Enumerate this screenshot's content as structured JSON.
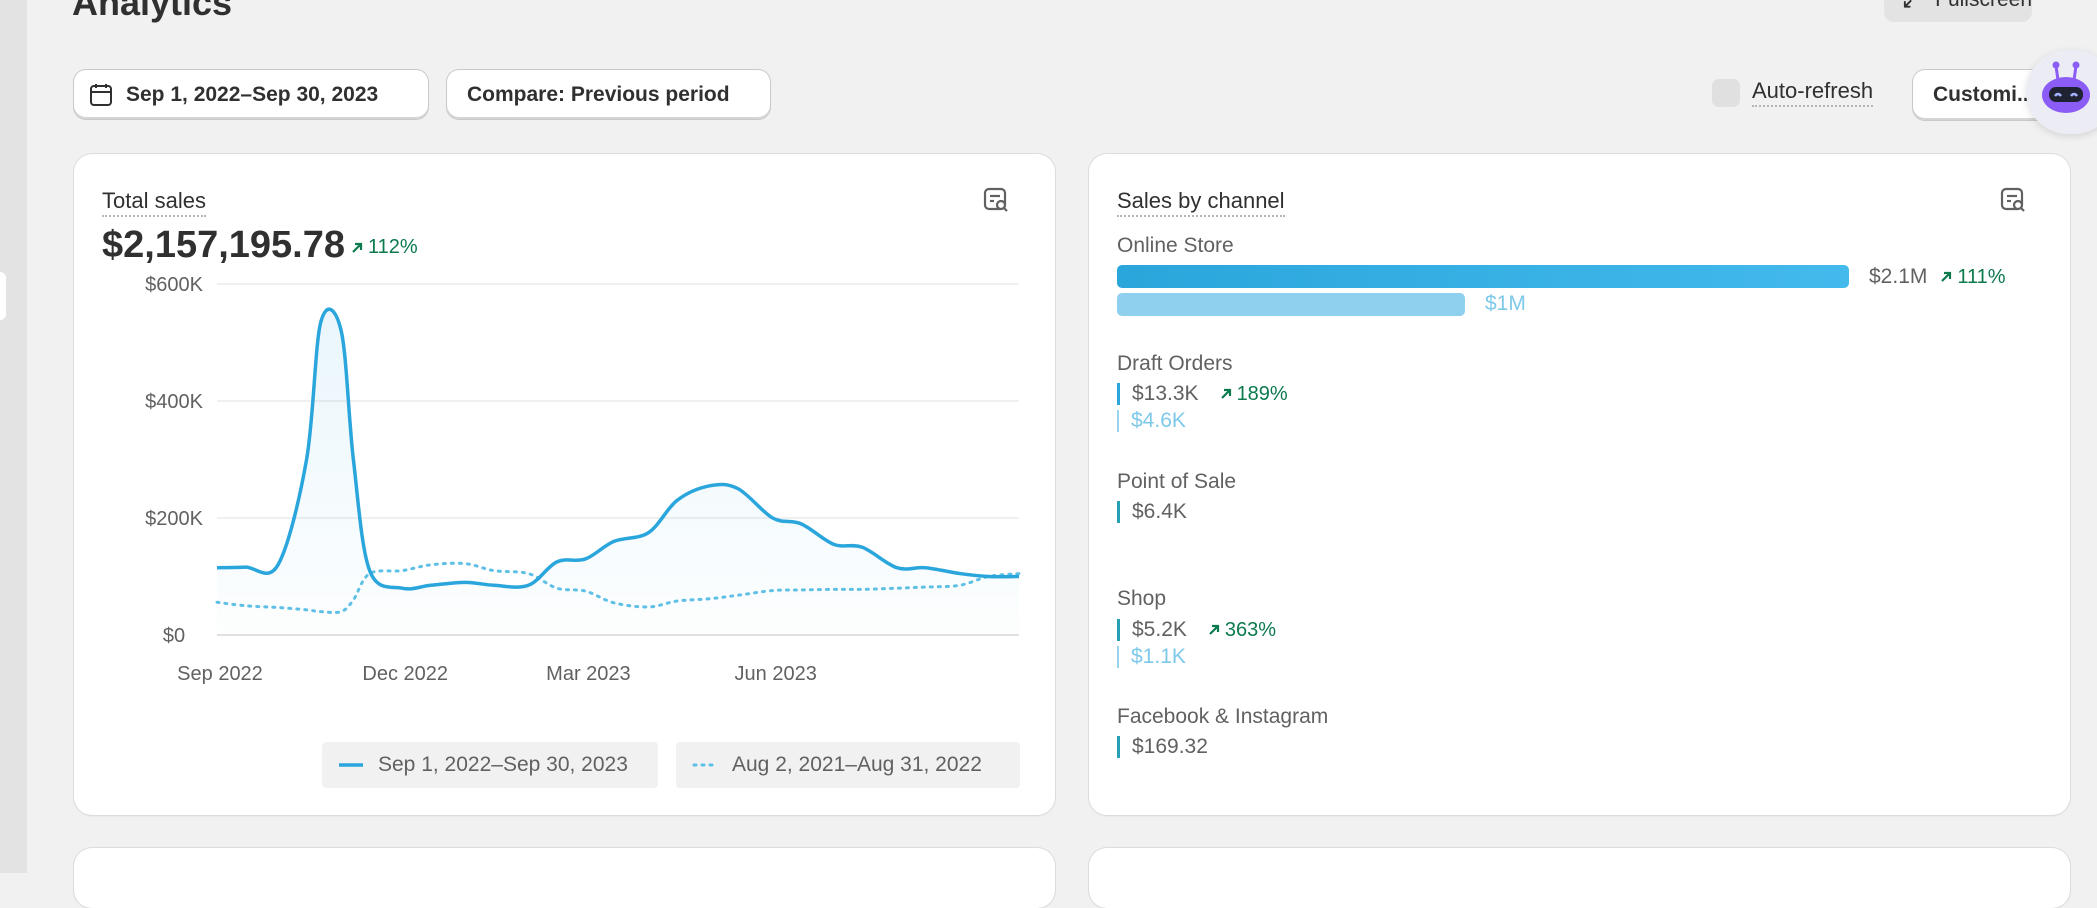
{
  "page": {
    "title": "Analytics",
    "fullscreen_label": "Fullscreen"
  },
  "toolbar": {
    "date_range": "Sep 1, 2022–Sep 30, 2023",
    "compare": "Compare: Previous period",
    "auto_refresh": "Auto-refresh",
    "customize": "Customi..."
  },
  "total_sales": {
    "title": "Total sales",
    "value": "$2,157,195.78",
    "change": "112%",
    "legend_current": "Sep 1, 2022–Sep 30, 2023",
    "legend_previous": "Aug 2, 2021–Aug 31, 2022",
    "chart_data": {
      "type": "line",
      "ylim": [
        0,
        600000
      ],
      "yticks": [
        "$600K",
        "$400K",
        "$200K",
        "$0"
      ],
      "ytick_values": [
        600000,
        400000,
        200000,
        0
      ],
      "xticks": [
        "Sep 2022",
        "Dec 2022",
        "Mar 2023",
        "Jun 2023"
      ],
      "x": [
        "2022-09-01",
        "2022-09-15",
        "2022-10-01",
        "2022-10-15",
        "2022-10-22",
        "2022-11-01",
        "2022-11-07",
        "2022-11-15",
        "2022-12-01",
        "2022-12-15",
        "2023-01-01",
        "2023-01-15",
        "2023-02-01",
        "2023-02-15",
        "2023-03-01",
        "2023-03-15",
        "2023-04-01",
        "2023-04-15",
        "2023-05-01",
        "2023-05-15",
        "2023-06-01",
        "2023-06-15",
        "2023-07-01",
        "2023-07-15",
        "2023-08-01",
        "2023-08-15",
        "2023-09-01",
        "2023-09-15",
        "2023-09-30"
      ],
      "series": [
        {
          "name": "Sep 1, 2022–Sep 30, 2023",
          "style": "solid",
          "values": [
            115000,
            116000,
            120000,
            300000,
            535000,
            520000,
            300000,
            110000,
            80000,
            85000,
            90000,
            85000,
            85000,
            125000,
            130000,
            160000,
            175000,
            230000,
            255000,
            250000,
            200000,
            190000,
            155000,
            150000,
            115000,
            115000,
            105000,
            100000,
            100000
          ]
        },
        {
          "name": "Aug 2, 2021–Aug 31, 2022",
          "style": "dotted",
          "values": [
            56000,
            50000,
            47000,
            43000,
            40000,
            40000,
            60000,
            105000,
            110000,
            120000,
            122000,
            110000,
            105000,
            80000,
            75000,
            55000,
            48000,
            58000,
            62000,
            68000,
            76000,
            77000,
            78000,
            78000,
            80000,
            82000,
            85000,
            100000,
            105000
          ]
        }
      ]
    }
  },
  "sales_by_channel": {
    "title": "Sales by channel",
    "channels": [
      {
        "name": "Online Store",
        "current": "$2.1M",
        "previous": "$1M",
        "change": "111%"
      },
      {
        "name": "Draft Orders",
        "current": "$13.3K",
        "previous": "$4.6K",
        "change": "189%"
      },
      {
        "name": "Point of Sale",
        "current": "$6.4K"
      },
      {
        "name": "Shop",
        "current": "$5.2K",
        "previous": "$1.1K",
        "change": "363%"
      },
      {
        "name": "Facebook & Instagram",
        "current": "$169.32"
      }
    ],
    "bar_fraction_current": 1.0,
    "bar_fraction_previous": 0.476
  },
  "colors": {
    "accent": "#2aa6dc",
    "accent_light": "#7ec8ea",
    "positive": "#0c7a4d",
    "bot_purple": "#8b5cf6"
  }
}
